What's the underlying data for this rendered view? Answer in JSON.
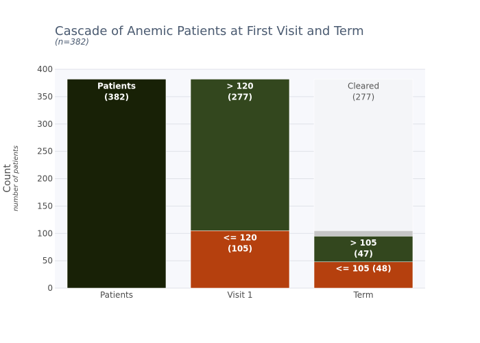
{
  "colors": {
    "dark": "#182106",
    "mid_green": "#33471e",
    "orange": "#b5400e",
    "light": "#f4f5f8",
    "grey": "#c6c6c6",
    "title": "#4a5a70",
    "axis_text": "#4a4a4a",
    "plot_bg": "#f7f8fc",
    "grid": "#dfe1e8"
  },
  "chart_data": {
    "type": "bar",
    "title": "Cascade of Anemic Patients at First Visit and Term",
    "subtitle": "(n=382)",
    "ylabel": "Count",
    "ylabel_sub": "number of patients",
    "ylim": [
      0,
      400
    ],
    "yticks": [
      0,
      50,
      100,
      150,
      200,
      250,
      300,
      350,
      400
    ],
    "categories": [
      "Patients",
      "Visit 1",
      "Term"
    ],
    "stacks": [
      {
        "category": "Patients",
        "segments": [
          {
            "base": 0,
            "value": 382,
            "color": "dark",
            "label": "Patients",
            "label2": "(382)",
            "label_color": "#ffffff",
            "bold": true,
            "anchor": "top"
          }
        ]
      },
      {
        "category": "Visit 1",
        "segments": [
          {
            "base": 0,
            "value": 105,
            "color": "orange",
            "label": "<= 120",
            "label2": "(105)",
            "label_color": "#ffffff",
            "bold": true,
            "anchor": "top"
          },
          {
            "base": 105,
            "value": 277,
            "color": "mid_green",
            "label": "> 120",
            "label2": "(277)",
            "label_color": "#ffffff",
            "bold": true,
            "anchor": "top"
          }
        ]
      },
      {
        "category": "Term",
        "segments": [
          {
            "base": 0,
            "value": 48,
            "color": "orange",
            "label": "<= 105 (48)",
            "label2": "",
            "label_color": "#ffffff",
            "bold": true,
            "anchor": "top"
          },
          {
            "base": 48,
            "value": 47,
            "color": "mid_green",
            "label": "> 105",
            "label2": "(47)",
            "label_color": "#ffffff",
            "bold": true,
            "anchor": "top"
          },
          {
            "base": 95,
            "value": 10,
            "color": "grey",
            "label": "",
            "label2": "",
            "label_color": "#ffffff",
            "bold": false,
            "anchor": "top"
          },
          {
            "base": 105,
            "value": 277,
            "color": "light",
            "label": "Cleared",
            "label2": "(277)",
            "label_color": "#555555",
            "bold": false,
            "anchor": "top"
          }
        ]
      }
    ]
  }
}
